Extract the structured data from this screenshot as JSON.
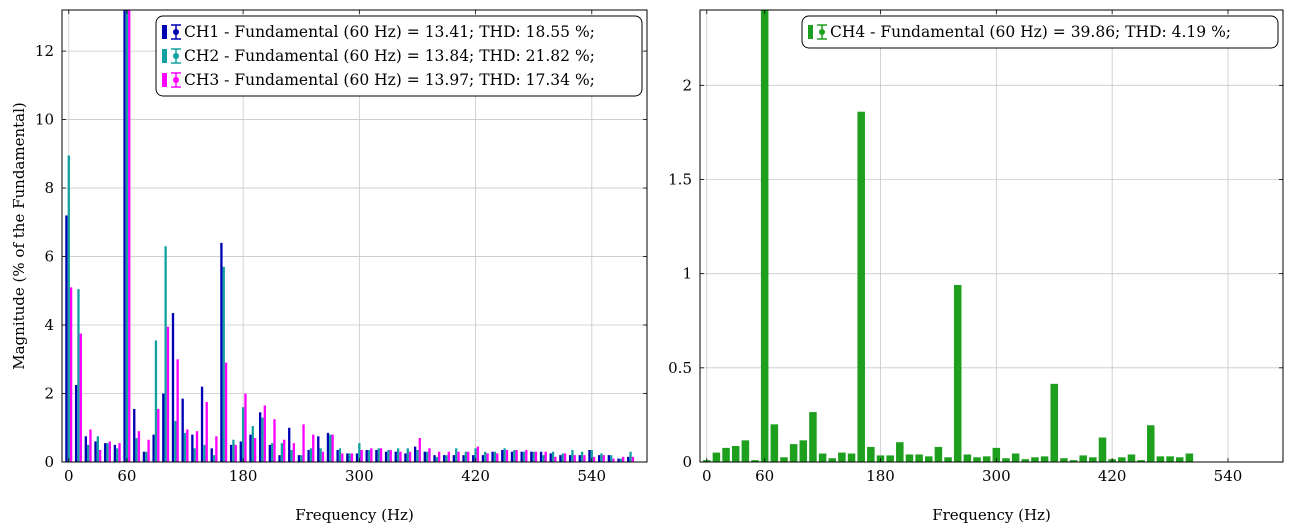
{
  "chart_data": [
    {
      "type": "bar",
      "xlabel": "Frequency (Hz)",
      "ylabel": "Magnitude (% of the Fundamental)",
      "xlim": [
        -7,
        597
      ],
      "ylim": [
        0,
        13.2
      ],
      "xticks": [
        0,
        60,
        180,
        300,
        420,
        540
      ],
      "yticks": [
        0,
        2,
        4,
        6,
        8,
        10,
        12
      ],
      "grid": true,
      "legend_position": "top-right",
      "x": [
        0,
        10,
        20,
        30,
        40,
        50,
        60,
        70,
        80,
        90,
        100,
        110,
        120,
        130,
        140,
        150,
        160,
        170,
        180,
        190,
        200,
        210,
        220,
        230,
        240,
        250,
        260,
        270,
        280,
        290,
        300,
        310,
        320,
        330,
        340,
        350,
        360,
        370,
        380,
        390,
        400,
        410,
        420,
        430,
        440,
        450,
        460,
        470,
        480,
        490,
        500,
        510,
        520,
        530,
        540,
        550,
        560,
        570,
        580
      ],
      "series": [
        {
          "name": "CH1 - Fundamental (60 Hz) = 13.41; THD: 18.55 %;",
          "color": "#0000b4",
          "values": [
            7.2,
            2.25,
            0.75,
            0.6,
            0.55,
            0.5,
            13.4,
            1.55,
            0.3,
            0.8,
            2.0,
            4.35,
            1.85,
            0.8,
            2.2,
            0.4,
            6.4,
            0.5,
            0.6,
            0.8,
            1.45,
            0.5,
            0.2,
            1.0,
            0.2,
            0.35,
            0.75,
            0.85,
            0.35,
            0.25,
            0.25,
            0.35,
            0.35,
            0.3,
            0.3,
            0.25,
            0.45,
            0.3,
            0.2,
            0.2,
            0.2,
            0.2,
            0.2,
            0.2,
            0.3,
            0.35,
            0.3,
            0.3,
            0.3,
            0.3,
            0.25,
            0.2,
            0.2,
            0.2,
            0.35,
            0.2,
            0.2,
            0.1,
            0.15
          ]
        },
        {
          "name": "CH2 - Fundamental (60 Hz) = 13.84; THD: 21.82 %;",
          "color": "#14a0a0",
          "values": [
            8.95,
            5.05,
            0.5,
            0.75,
            0.55,
            0.4,
            13.84,
            0.7,
            0.3,
            3.55,
            6.3,
            1.2,
            0.85,
            0.4,
            0.5,
            0.2,
            5.7,
            0.65,
            1.6,
            1.05,
            1.3,
            0.55,
            0.55,
            0.35,
            0.2,
            0.4,
            0.4,
            0.8,
            0.4,
            0.25,
            0.55,
            0.35,
            0.4,
            0.35,
            0.4,
            0.4,
            0.35,
            0.3,
            0.15,
            0.2,
            0.4,
            0.3,
            0.4,
            0.3,
            0.3,
            0.4,
            0.35,
            0.3,
            0.3,
            0.2,
            0.3,
            0.25,
            0.35,
            0.3,
            0.35,
            0.25,
            0.2,
            0.1,
            0.3
          ]
        },
        {
          "name": "CH3 - Fundamental (60 Hz) = 13.97; THD: 17.34 %;",
          "color": "#ff00ff",
          "values": [
            5.1,
            3.75,
            0.95,
            0.35,
            0.6,
            0.55,
            13.97,
            0.9,
            0.65,
            1.55,
            3.95,
            3.0,
            0.95,
            0.9,
            1.75,
            0.75,
            2.9,
            0.5,
            2.0,
            0.7,
            1.65,
            1.25,
            0.65,
            0.55,
            1.1,
            0.8,
            0.3,
            0.8,
            0.25,
            0.25,
            0.35,
            0.4,
            0.4,
            0.35,
            0.3,
            0.3,
            0.7,
            0.4,
            0.3,
            0.3,
            0.3,
            0.3,
            0.45,
            0.25,
            0.25,
            0.35,
            0.35,
            0.35,
            0.3,
            0.3,
            0.15,
            0.25,
            0.2,
            0.2,
            0.15,
            0.2,
            0.1,
            0.15,
            0.15
          ]
        }
      ]
    },
    {
      "type": "bar",
      "xlabel": "Frequency (Hz)",
      "ylabel": "",
      "xlim": [
        -7,
        597
      ],
      "ylim": [
        0,
        2.4
      ],
      "xticks": [
        0,
        60,
        180,
        300,
        420,
        540
      ],
      "yticks": [
        0,
        0.5,
        1,
        1.5,
        2
      ],
      "grid": true,
      "legend_position": "top-right",
      "x": [
        0,
        10,
        20,
        30,
        40,
        50,
        60,
        70,
        80,
        90,
        100,
        110,
        120,
        130,
        140,
        150,
        160,
        170,
        180,
        190,
        200,
        210,
        220,
        230,
        240,
        250,
        260,
        270,
        280,
        290,
        300,
        310,
        320,
        330,
        340,
        350,
        360,
        370,
        380,
        390,
        400,
        410,
        420,
        430,
        440,
        450,
        460,
        470,
        480,
        490,
        500,
        510,
        520,
        530,
        540,
        550,
        560,
        570,
        580
      ],
      "series": [
        {
          "name": "CH4 - Fundamental (60 Hz) = 39.86; THD: 4.19 %;",
          "color": "#1ea01e",
          "values": [
            0.01,
            0.05,
            0.075,
            0.085,
            0.115,
            0.01,
            2.4,
            0.2,
            0.025,
            0.095,
            0.115,
            0.265,
            0.045,
            0.02,
            0.05,
            0.045,
            1.86,
            0.08,
            0.035,
            0.035,
            0.105,
            0.04,
            0.04,
            0.03,
            0.08,
            0.025,
            0.94,
            0.04,
            0.025,
            0.03,
            0.075,
            0.02,
            0.045,
            0.015,
            0.025,
            0.03,
            0.415,
            0.02,
            0.01,
            0.035,
            0.025,
            0.13,
            0.015,
            0.025,
            0.04,
            0.01,
            0.195,
            0.03,
            0.03,
            0.025,
            0.045,
            0,
            0,
            0,
            0,
            0,
            0,
            0,
            0
          ]
        }
      ]
    }
  ]
}
